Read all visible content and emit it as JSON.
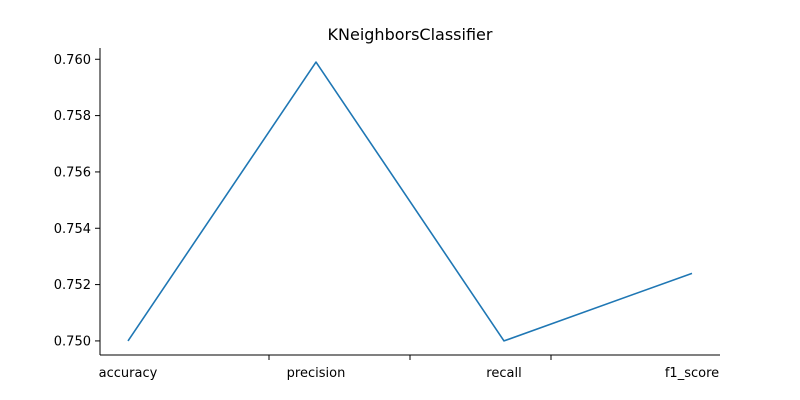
{
  "chart_data": {
    "type": "line",
    "title": "KNeighborsClassifier",
    "xlabel": "",
    "ylabel": "",
    "categories": [
      "accuracy",
      "precision",
      "recall",
      "f1_score"
    ],
    "series": [
      {
        "values": [
          0.75,
          0.7599,
          0.75,
          0.7524
        ]
      }
    ],
    "ylim": [
      0.7495,
      0.7604
    ],
    "yticks": [
      "0.750",
      "0.752",
      "0.754",
      "0.756",
      "0.758",
      "0.760"
    ],
    "x_minor_ticks": 3,
    "grid": false,
    "legend": "none",
    "colors": {
      "line": "#1f77b4"
    }
  }
}
